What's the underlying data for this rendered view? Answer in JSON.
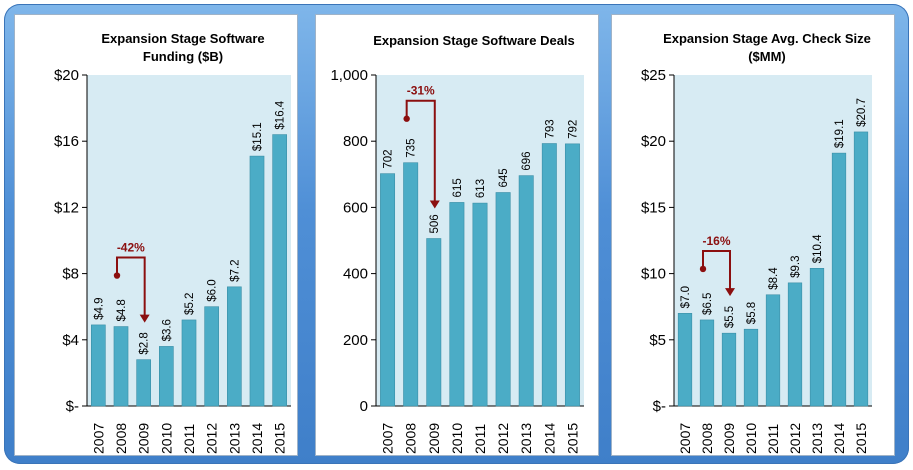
{
  "colors": {
    "bar": "#4bacc6",
    "bar_edge": "#3a8ea6",
    "plot_bg": "#d7ebf3",
    "arrow": "#8b0f0f",
    "frame": "#4f8fd6"
  },
  "chart_data": [
    {
      "type": "bar",
      "title_lines": [
        "Expansion Stage Software",
        "Funding ($B)"
      ],
      "categories": [
        "2007",
        "2008",
        "2009",
        "2010",
        "2011",
        "2012",
        "2013",
        "2014",
        "2015"
      ],
      "values": [
        4.9,
        4.8,
        2.8,
        3.6,
        5.2,
        6.0,
        7.2,
        15.1,
        16.4
      ],
      "data_labels": [
        "$4.9",
        "$4.8",
        "$2.8",
        "$3.6",
        "$5.2",
        "$6.0",
        "$7.2",
        "$15.1",
        "$16.4"
      ],
      "ylim": [
        0,
        20
      ],
      "yticks": [
        0,
        4,
        8,
        12,
        16,
        20
      ],
      "ytick_labels": [
        "$-",
        "$4",
        "$8",
        "$12",
        "$16",
        "$20"
      ],
      "annotation": {
        "text": "-42%",
        "from_index": 1,
        "to_index": 2
      }
    },
    {
      "type": "bar",
      "title_lines": [
        "Expansion Stage Software Deals"
      ],
      "categories": [
        "2007",
        "2008",
        "2009",
        "2010",
        "2011",
        "2012",
        "2013",
        "2014",
        "2015"
      ],
      "values": [
        702,
        735,
        506,
        615,
        613,
        645,
        696,
        793,
        792
      ],
      "data_labels": [
        "702",
        "735",
        "506",
        "615",
        "613",
        "645",
        "696",
        "793",
        "792"
      ],
      "ylim": [
        0,
        1000
      ],
      "yticks": [
        0,
        200,
        400,
        600,
        800,
        1000
      ],
      "ytick_labels": [
        "0",
        "200",
        "400",
        "600",
        "800",
        "1,000"
      ],
      "annotation": {
        "text": "-31%",
        "from_index": 1,
        "to_index": 2
      }
    },
    {
      "type": "bar",
      "title_lines": [
        "Expansion Stage Avg. Check Size",
        "($MM)"
      ],
      "categories": [
        "2007",
        "2008",
        "2009",
        "2010",
        "2011",
        "2012",
        "2013",
        "2014",
        "2015"
      ],
      "values": [
        7.0,
        6.5,
        5.5,
        5.8,
        8.4,
        9.3,
        10.4,
        19.1,
        20.7
      ],
      "data_labels": [
        "$7.0",
        "$6.5",
        "$5.5",
        "$5.8",
        "$8.4",
        "$9.3",
        "$10.4",
        "$19.1",
        "$20.7"
      ],
      "ylim": [
        0,
        25
      ],
      "yticks": [
        0,
        5,
        10,
        15,
        20,
        25
      ],
      "ytick_labels": [
        "$-",
        "$5",
        "$10",
        "$15",
        "$20",
        "$25"
      ],
      "annotation": {
        "text": "-16%",
        "from_index": 1,
        "to_index": 2
      }
    }
  ]
}
